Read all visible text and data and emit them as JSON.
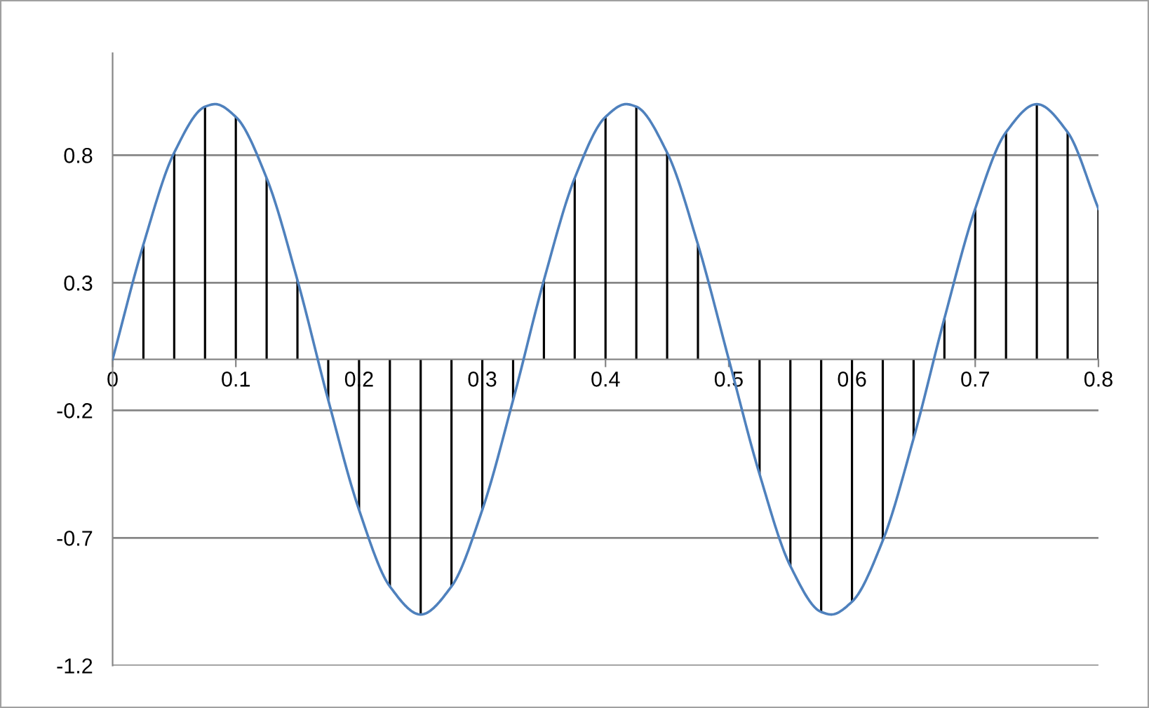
{
  "chart_data": {
    "type": "line",
    "series": [
      {
        "color": "#4f81bd",
        "x": [
          0,
          0.025,
          0.05,
          0.075,
          0.0833,
          0.1,
          0.125,
          0.15,
          0.175,
          0.2,
          0.225,
          0.25,
          0.275,
          0.3,
          0.325,
          0.35,
          0.375,
          0.4,
          0.4167,
          0.425,
          0.45,
          0.475,
          0.5,
          0.525,
          0.55,
          0.575,
          0.5833,
          0.6,
          0.625,
          0.65,
          0.675,
          0.7,
          0.725,
          0.75,
          0.775,
          0.8
        ],
        "values": [
          0,
          0.45,
          0.81,
          0.99,
          1,
          0.95,
          0.71,
          0.31,
          -0.16,
          -0.59,
          -0.89,
          -1,
          -0.89,
          -0.59,
          -0.16,
          0.31,
          0.71,
          0.95,
          1,
          0.99,
          0.81,
          0.45,
          0,
          -0.45,
          -0.81,
          -0.99,
          -1,
          -0.95,
          -0.71,
          -0.31,
          0.16,
          0.59,
          0.89,
          1,
          0.89,
          0.59
        ]
      },
      {
        "type": "bar",
        "color": "#000000",
        "x": [
          0,
          0.025,
          0.05,
          0.075,
          0.1,
          0.125,
          0.15,
          0.175,
          0.2,
          0.225,
          0.25,
          0.275,
          0.3,
          0.325,
          0.35,
          0.375,
          0.4,
          0.425,
          0.45,
          0.475,
          0.5,
          0.525,
          0.55,
          0.575,
          0.6,
          0.625,
          0.65,
          0.675,
          0.7,
          0.725,
          0.75,
          0.775,
          0.8
        ],
        "values": [
          0,
          0.45,
          0.81,
          0.99,
          0.95,
          0.71,
          0.31,
          -0.16,
          -0.59,
          -0.89,
          -1,
          -0.89,
          -0.59,
          -0.16,
          0.31,
          0.71,
          0.95,
          0.99,
          0.81,
          0.45,
          0,
          -0.45,
          -0.81,
          -0.99,
          -0.95,
          -0.71,
          -0.31,
          0.16,
          0.59,
          0.89,
          1,
          0.89,
          0.59
        ]
      }
    ],
    "xlim": [
      0,
      0.8
    ],
    "xticks": [
      0,
      0.1,
      0.2,
      0.3,
      0.4,
      0.5,
      0.6,
      0.7,
      0.8
    ],
    "ylim": [
      -1.2,
      1.2
    ],
    "yticks": [
      -1.2,
      -0.7,
      -0.2,
      0.3,
      0.8
    ],
    "grid": "y",
    "legend": false
  }
}
